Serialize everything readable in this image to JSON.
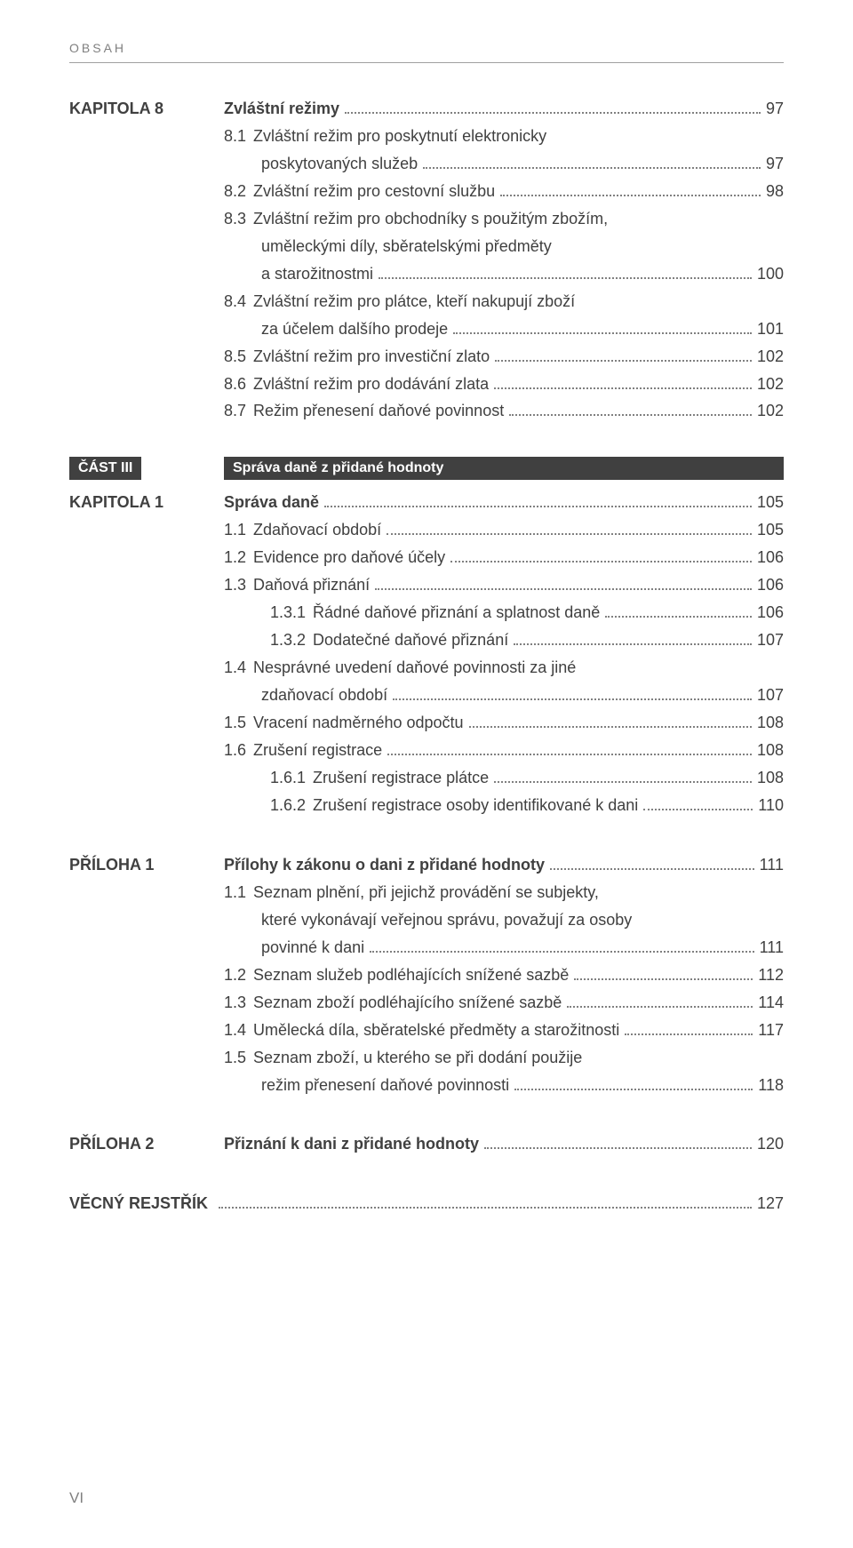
{
  "header": "OBSAH",
  "footer": "VI",
  "blocks": [
    {
      "label": "KAPITOLA 8",
      "rows": [
        {
          "num": "",
          "txt": "Zvláštní režimy",
          "pg": "97",
          "bold": true,
          "indent": 0
        },
        {
          "num": "8.1",
          "txt": "Zvláštní režim pro poskytnutí elektronicky",
          "pg": "",
          "indent": 0
        },
        {
          "num": "",
          "txt": "poskytovaných služeb",
          "pg": "97",
          "indent": 0,
          "cont": true
        },
        {
          "num": "8.2",
          "txt": "Zvláštní režim pro cestovní službu",
          "pg": "98",
          "indent": 0
        },
        {
          "num": "8.3",
          "txt": "Zvláštní režim pro obchodníky s použitým zbožím,",
          "pg": "",
          "indent": 0
        },
        {
          "num": "",
          "txt": "uměleckými díly, sběratelskými předměty",
          "pg": "",
          "indent": 0,
          "cont": true
        },
        {
          "num": "",
          "txt": "a starožitnostmi",
          "pg": "100",
          "indent": 0,
          "cont": true
        },
        {
          "num": "8.4",
          "txt": "Zvláštní režim pro plátce, kteří nakupují zboží",
          "pg": "",
          "indent": 0
        },
        {
          "num": "",
          "txt": "za účelem dalšího prodeje",
          "pg": "101",
          "indent": 0,
          "cont": true
        },
        {
          "num": "8.5",
          "txt": "Zvláštní režim pro investiční zlato",
          "pg": "102",
          "indent": 0
        },
        {
          "num": "8.6",
          "txt": "Zvláštní režim pro dodávání zlata",
          "pg": "102",
          "indent": 0
        },
        {
          "num": "8.7",
          "txt": "Režim přenesení daňové povinnost",
          "pg": "102",
          "indent": 0
        }
      ]
    },
    {
      "partLabel": "ČÁST III",
      "partTitle": "Správa daně z přidané hodnoty",
      "label": "KAPITOLA 1",
      "rows": [
        {
          "num": "",
          "txt": "Správa daně",
          "pg": "105",
          "bold": true,
          "indent": 0
        },
        {
          "num": "1.1",
          "txt": "Zdaňovací období",
          "pg": "105",
          "indent": 0
        },
        {
          "num": "1.2",
          "txt": "Evidence pro daňové účely",
          "pg": "106",
          "indent": 0
        },
        {
          "num": "1.3",
          "txt": "Daňová přiznání",
          "pg": "106",
          "indent": 0
        },
        {
          "num": "1.3.1",
          "txt": "Řádné daňové přiznání a splatnost daně",
          "pg": "106",
          "indent": 1
        },
        {
          "num": "1.3.2",
          "txt": "Dodatečné daňové přiznání",
          "pg": "107",
          "indent": 1
        },
        {
          "num": "1.4",
          "txt": "Nesprávné uvedení daňové povinnosti za jiné",
          "pg": "",
          "indent": 0
        },
        {
          "num": "",
          "txt": "zdaňovací období",
          "pg": "107",
          "indent": 0,
          "cont": true
        },
        {
          "num": "1.5",
          "txt": "Vracení nadměrného odpočtu",
          "pg": "108",
          "indent": 0
        },
        {
          "num": "1.6",
          "txt": "Zrušení registrace",
          "pg": "108",
          "indent": 0
        },
        {
          "num": "1.6.1",
          "txt": "Zrušení registrace plátce",
          "pg": "108",
          "indent": 1
        },
        {
          "num": "1.6.2",
          "txt": "Zrušení registrace osoby identifikované k dani",
          "pg": "110",
          "indent": 1
        }
      ]
    },
    {
      "label": "PŘÍLOHA 1",
      "rows": [
        {
          "num": "",
          "txt": "Přílohy k zákonu o dani z přidané hodnoty",
          "pg": "111",
          "bold": true,
          "indent": 0
        },
        {
          "num": "1.1",
          "txt": "Seznam plnění, při jejichž provádění se subjekty,",
          "pg": "",
          "indent": 0
        },
        {
          "num": "",
          "txt": "které vykonávají veřejnou správu, považují za osoby",
          "pg": "",
          "indent": 0,
          "cont": true
        },
        {
          "num": "",
          "txt": "povinné k dani",
          "pg": "111",
          "indent": 0,
          "cont": true
        },
        {
          "num": "1.2",
          "txt": "Seznam služeb podléhajících snížené sazbě",
          "pg": "112",
          "indent": 0
        },
        {
          "num": "1.3",
          "txt": "Seznam zboží podléhajícího snížené sazbě",
          "pg": "114",
          "indent": 0
        },
        {
          "num": "1.4",
          "txt": "Umělecká díla, sběratelské předměty a starožitnosti",
          "pg": "117",
          "indent": 0
        },
        {
          "num": "1.5",
          "txt": "Seznam zboží, u kterého se při dodání použije",
          "pg": "",
          "indent": 0
        },
        {
          "num": "",
          "txt": "režim přenesení daňové povinnosti",
          "pg": "118",
          "indent": 0,
          "cont": true
        }
      ]
    },
    {
      "label": "PŘÍLOHA 2",
      "rows": [
        {
          "num": "",
          "txt": "Přiznání k dani z přidané hodnoty",
          "pg": "120",
          "bold": true,
          "indent": 0
        }
      ]
    },
    {
      "label": "VĚCNÝ REJSTŘÍK",
      "singleLine": true,
      "rows": [
        {
          "num": "",
          "txt": "",
          "pg": "127",
          "indent": 0
        }
      ]
    }
  ]
}
